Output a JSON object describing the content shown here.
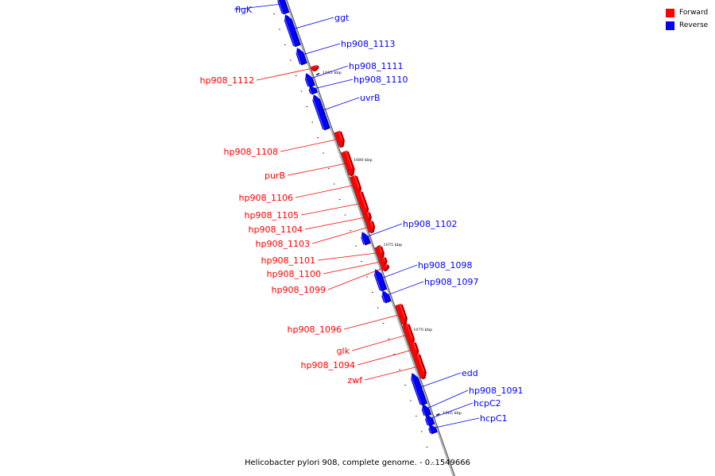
{
  "legend": {
    "forward_label": "Forward",
    "forward_color": "#ff0000",
    "reverse_label": "Reverse",
    "reverse_color": "#0000ff"
  },
  "caption": "Helicobacter pylori 908, complete genome. - 0..1549666",
  "axis": {
    "ticks": [
      "1085 kbp",
      "1080 kbp",
      "1075 kbp",
      "1070 kbp",
      "1065 kbp"
    ]
  },
  "genes": [
    {
      "name": "flgK",
      "strand": "reverse"
    },
    {
      "name": "ggt",
      "strand": "reverse"
    },
    {
      "name": "hp908_1113",
      "strand": "reverse"
    },
    {
      "name": "hp908_1112",
      "strand": "forward"
    },
    {
      "name": "hp908_1111",
      "strand": "reverse"
    },
    {
      "name": "hp908_1110",
      "strand": "reverse"
    },
    {
      "name": "uvrB",
      "strand": "reverse"
    },
    {
      "name": "hp908_1108",
      "strand": "forward"
    },
    {
      "name": "purB",
      "strand": "forward"
    },
    {
      "name": "hp908_1106",
      "strand": "forward"
    },
    {
      "name": "hp908_1105",
      "strand": "forward"
    },
    {
      "name": "hp908_1104",
      "strand": "forward"
    },
    {
      "name": "hp908_1103",
      "strand": "forward"
    },
    {
      "name": "hp908_1102",
      "strand": "reverse"
    },
    {
      "name": "hp908_1101",
      "strand": "forward"
    },
    {
      "name": "hp908_1100",
      "strand": "forward"
    },
    {
      "name": "hp908_1099",
      "strand": "forward"
    },
    {
      "name": "hp908_1098",
      "strand": "reverse"
    },
    {
      "name": "hp908_1097",
      "strand": "reverse"
    },
    {
      "name": "hp908_1096",
      "strand": "forward"
    },
    {
      "name": "glk",
      "strand": "forward"
    },
    {
      "name": "hp908_1094",
      "strand": "forward"
    },
    {
      "name": "zwf",
      "strand": "forward"
    },
    {
      "name": "edd",
      "strand": "reverse"
    },
    {
      "name": "hp908_1091",
      "strand": "reverse"
    },
    {
      "name": "hcpC2",
      "strand": "reverse"
    },
    {
      "name": "hcpC1",
      "strand": "reverse"
    }
  ]
}
